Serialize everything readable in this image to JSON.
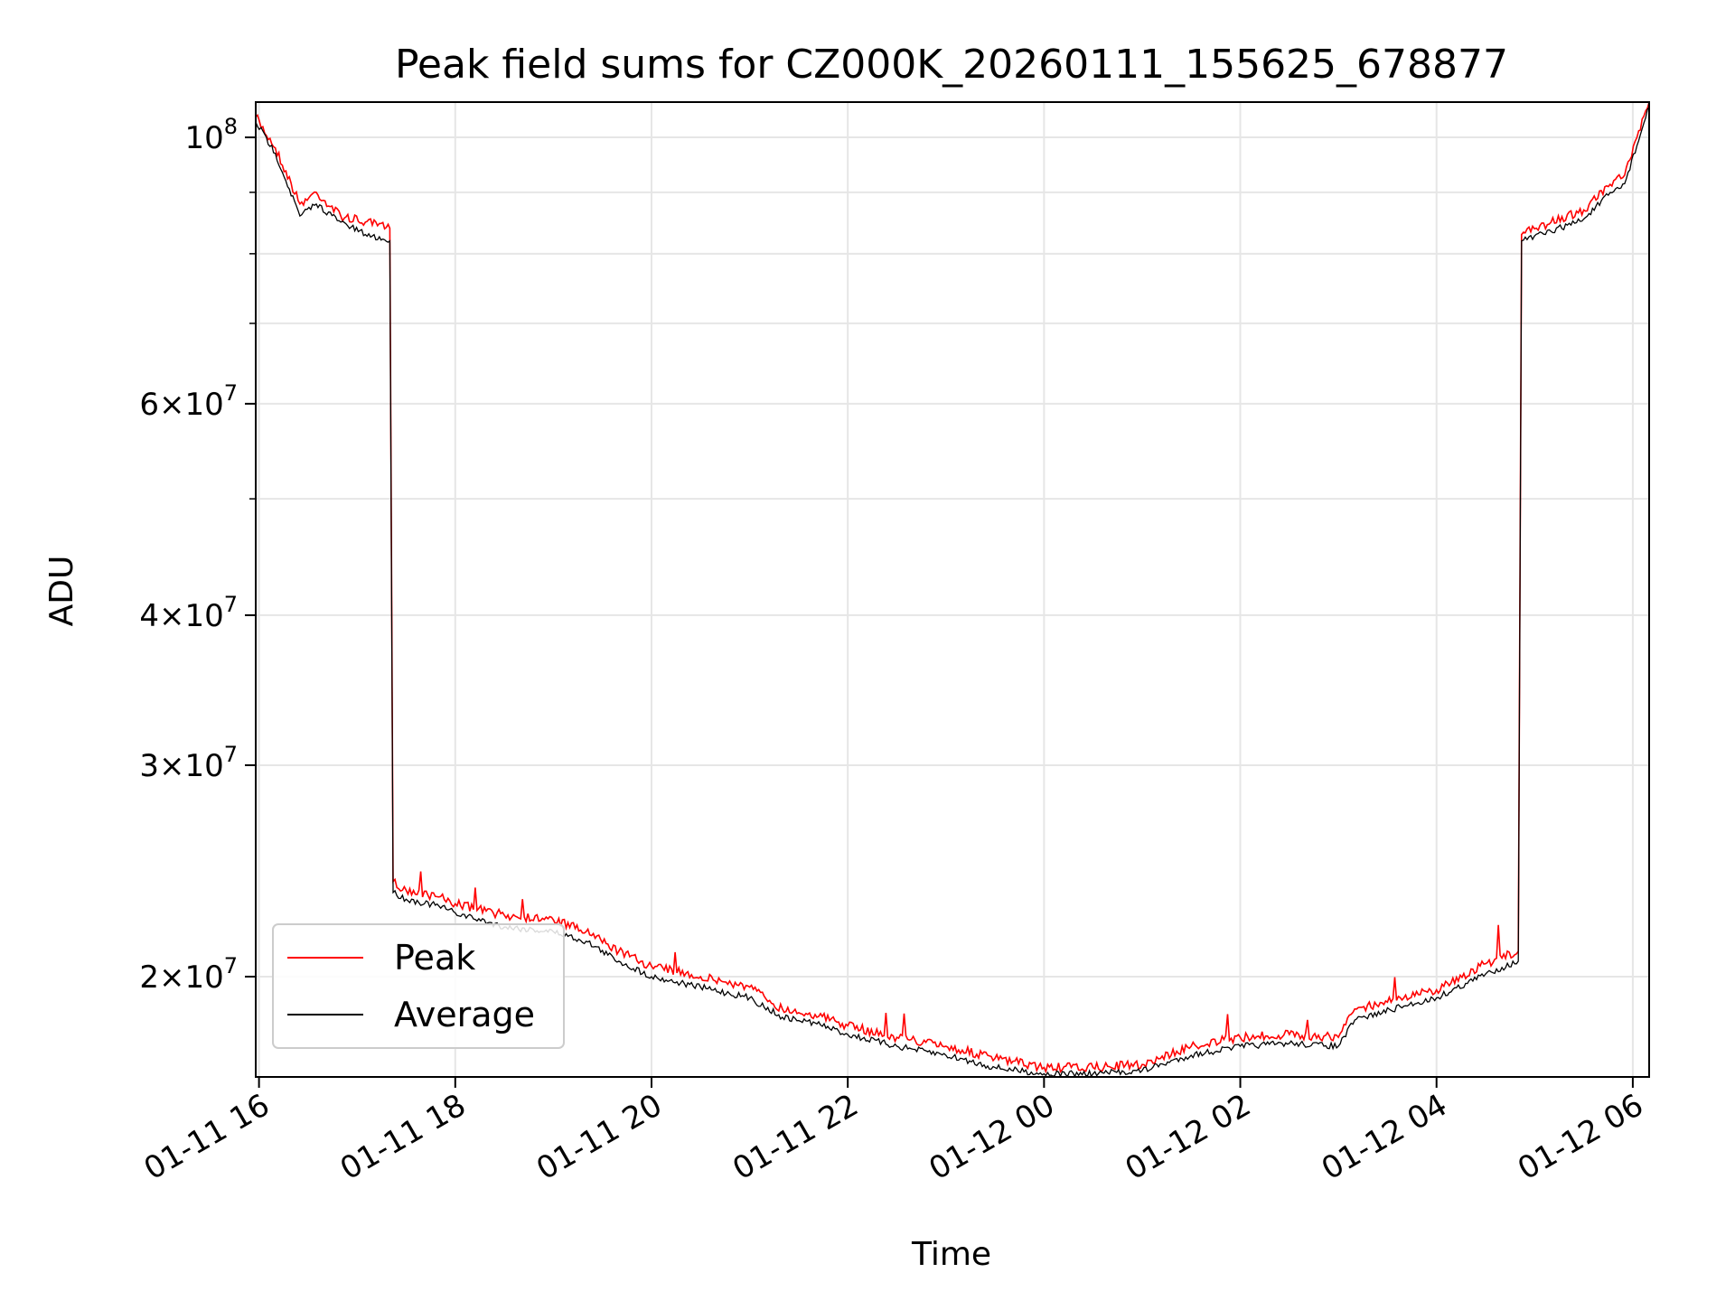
{
  "chart_data": {
    "type": "line",
    "title": "Peak field sums for CZ000K_20260111_155625_678877",
    "xlabel": "Time",
    "ylabel": "ADU",
    "y_scale": "log",
    "ylim": [
      16500000,
      107000000
    ],
    "xlim": [
      "2026-01-11 15:58",
      "2026-01-12 06:10"
    ],
    "x_ticks": [
      "01-11 16",
      "01-11 18",
      "01-11 20",
      "01-11 22",
      "01-12 00",
      "01-12 02",
      "01-12 04",
      "01-12 06"
    ],
    "y_ticks": [
      {
        "value": 20000000,
        "mantissa": "2",
        "exponent": "7"
      },
      {
        "value": 30000000,
        "mantissa": "3",
        "exponent": "7"
      },
      {
        "value": 40000000,
        "mantissa": "4",
        "exponent": "7"
      },
      {
        "value": 60000000,
        "mantissa": "6",
        "exponent": "7"
      },
      {
        "value": 100000000,
        "mantissa": "",
        "exponent": "8"
      }
    ],
    "grid": true,
    "legend_position": "lower-left",
    "series": [
      {
        "name": "Peak",
        "color": "#ff0000",
        "x": [
          "2026-01-11 15:58",
          "2026-01-11 16:10",
          "2026-01-11 16:25",
          "2026-01-11 16:35",
          "2026-01-11 16:50",
          "2026-01-11 17:05",
          "2026-01-11 17:20",
          "2026-01-11 17:22",
          "2026-01-11 17:30",
          "2026-01-11 17:50",
          "2026-01-11 18:00",
          "2026-01-11 18:30",
          "2026-01-11 19:00",
          "2026-01-11 19:20",
          "2026-01-11 19:40",
          "2026-01-11 20:00",
          "2026-01-11 20:30",
          "2026-01-11 21:00",
          "2026-01-11 21:20",
          "2026-01-11 21:40",
          "2026-01-11 22:00",
          "2026-01-11 22:30",
          "2026-01-11 23:00",
          "2026-01-11 23:30",
          "2026-01-12 00:00",
          "2026-01-12 00:30",
          "2026-01-12 01:00",
          "2026-01-12 01:30",
          "2026-01-12 02:00",
          "2026-01-12 02:30",
          "2026-01-12 03:00",
          "2026-01-12 03:10",
          "2026-01-12 03:40",
          "2026-01-12 04:00",
          "2026-01-12 04:30",
          "2026-01-12 04:50",
          "2026-01-12 04:52",
          "2026-01-12 05:10",
          "2026-01-12 05:30",
          "2026-01-12 05:45",
          "2026-01-12 05:55",
          "2026-01-12 06:10"
        ],
        "values": [
          104000000,
          98000000,
          88000000,
          90000000,
          86000000,
          85000000,
          84000000,
          24000000,
          23600000,
          23300000,
          23000000,
          22500000,
          22300000,
          21800000,
          21000000,
          20400000,
          20000000,
          19600000,
          18800000,
          18600000,
          18200000,
          17800000,
          17500000,
          17100000,
          16800000,
          16800000,
          16900000,
          17500000,
          17800000,
          17900000,
          17800000,
          18800000,
          19200000,
          19500000,
          20500000,
          21000000,
          83000000,
          85000000,
          87000000,
          91000000,
          93000000,
          107000000
        ]
      },
      {
        "name": "Average",
        "color": "#000000",
        "x": [
          "2026-01-11 15:58",
          "2026-01-11 16:10",
          "2026-01-11 16:25",
          "2026-01-11 16:35",
          "2026-01-11 16:50",
          "2026-01-11 17:05",
          "2026-01-11 17:20",
          "2026-01-11 17:22",
          "2026-01-11 17:30",
          "2026-01-11 17:50",
          "2026-01-11 18:00",
          "2026-01-11 18:30",
          "2026-01-11 19:00",
          "2026-01-11 19:20",
          "2026-01-11 19:40",
          "2026-01-11 20:00",
          "2026-01-11 20:30",
          "2026-01-11 21:00",
          "2026-01-11 21:20",
          "2026-01-11 21:40",
          "2026-01-11 22:00",
          "2026-01-11 22:30",
          "2026-01-11 23:00",
          "2026-01-11 23:30",
          "2026-01-12 00:00",
          "2026-01-12 00:30",
          "2026-01-12 01:00",
          "2026-01-12 01:30",
          "2026-01-12 02:00",
          "2026-01-12 02:30",
          "2026-01-12 03:00",
          "2026-01-12 03:10",
          "2026-01-12 03:40",
          "2026-01-12 04:00",
          "2026-01-12 04:30",
          "2026-01-12 04:50",
          "2026-01-12 04:52",
          "2026-01-12 05:10",
          "2026-01-12 05:30",
          "2026-01-12 05:45",
          "2026-01-12 05:55",
          "2026-01-12 06:10"
        ],
        "values": [
          103000000,
          97000000,
          86000000,
          88000000,
          85000000,
          83000000,
          82000000,
          23500000,
          23200000,
          22900000,
          22600000,
          22000000,
          21800000,
          21400000,
          20600000,
          20000000,
          19600000,
          19200000,
          18500000,
          18300000,
          17900000,
          17500000,
          17200000,
          16800000,
          16600000,
          16600000,
          16700000,
          17200000,
          17500000,
          17600000,
          17500000,
          18400000,
          18900000,
          19200000,
          20100000,
          20600000,
          82000000,
          83500000,
          85500000,
          89500000,
          91500000,
          106000000
        ]
      }
    ]
  }
}
